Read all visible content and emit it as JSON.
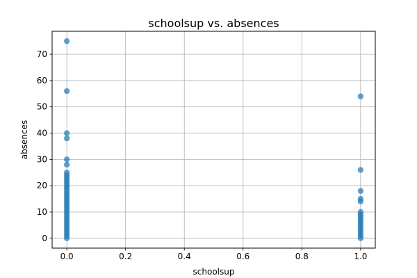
{
  "chart_data": {
    "type": "scatter",
    "title": "schoolsup vs. absences",
    "xlabel": "schoolsup",
    "ylabel": "absences",
    "xlim": [
      -0.05,
      1.05
    ],
    "ylim": [
      -3.75,
      78.75
    ],
    "xticks": [
      0.0,
      0.2,
      0.4,
      0.6,
      0.8,
      1.0
    ],
    "xtick_labels": [
      "0.0",
      "0.2",
      "0.4",
      "0.6",
      "0.8",
      "1.0"
    ],
    "yticks": [
      0,
      10,
      20,
      30,
      40,
      50,
      60,
      70
    ],
    "ytick_labels": [
      "0",
      "10",
      "20",
      "30",
      "40",
      "50",
      "60",
      "70"
    ],
    "grid": true,
    "marker_color": "#1f77b4",
    "marker_alpha": 0.7,
    "points": [
      {
        "x": 0,
        "y": 0
      },
      {
        "x": 0,
        "y": 1
      },
      {
        "x": 0,
        "y": 2
      },
      {
        "x": 0,
        "y": 3
      },
      {
        "x": 0,
        "y": 4
      },
      {
        "x": 0,
        "y": 5
      },
      {
        "x": 0,
        "y": 6
      },
      {
        "x": 0,
        "y": 7
      },
      {
        "x": 0,
        "y": 8
      },
      {
        "x": 0,
        "y": 9
      },
      {
        "x": 0,
        "y": 10
      },
      {
        "x": 0,
        "y": 11
      },
      {
        "x": 0,
        "y": 12
      },
      {
        "x": 0,
        "y": 13
      },
      {
        "x": 0,
        "y": 14
      },
      {
        "x": 0,
        "y": 15
      },
      {
        "x": 0,
        "y": 16
      },
      {
        "x": 0,
        "y": 17
      },
      {
        "x": 0,
        "y": 18
      },
      {
        "x": 0,
        "y": 19
      },
      {
        "x": 0,
        "y": 20
      },
      {
        "x": 0,
        "y": 21
      },
      {
        "x": 0,
        "y": 22
      },
      {
        "x": 0,
        "y": 23
      },
      {
        "x": 0,
        "y": 24
      },
      {
        "x": 0,
        "y": 25
      },
      {
        "x": 0,
        "y": 28
      },
      {
        "x": 0,
        "y": 30
      },
      {
        "x": 0,
        "y": 38
      },
      {
        "x": 0,
        "y": 40
      },
      {
        "x": 0,
        "y": 56
      },
      {
        "x": 0,
        "y": 75
      },
      {
        "x": 1,
        "y": 0
      },
      {
        "x": 1,
        "y": 1
      },
      {
        "x": 1,
        "y": 2
      },
      {
        "x": 1,
        "y": 3
      },
      {
        "x": 1,
        "y": 4
      },
      {
        "x": 1,
        "y": 5
      },
      {
        "x": 1,
        "y": 6
      },
      {
        "x": 1,
        "y": 7
      },
      {
        "x": 1,
        "y": 8
      },
      {
        "x": 1,
        "y": 9
      },
      {
        "x": 1,
        "y": 10
      },
      {
        "x": 1,
        "y": 14
      },
      {
        "x": 1,
        "y": 15
      },
      {
        "x": 1,
        "y": 18
      },
      {
        "x": 1,
        "y": 26
      },
      {
        "x": 1,
        "y": 54
      }
    ]
  }
}
